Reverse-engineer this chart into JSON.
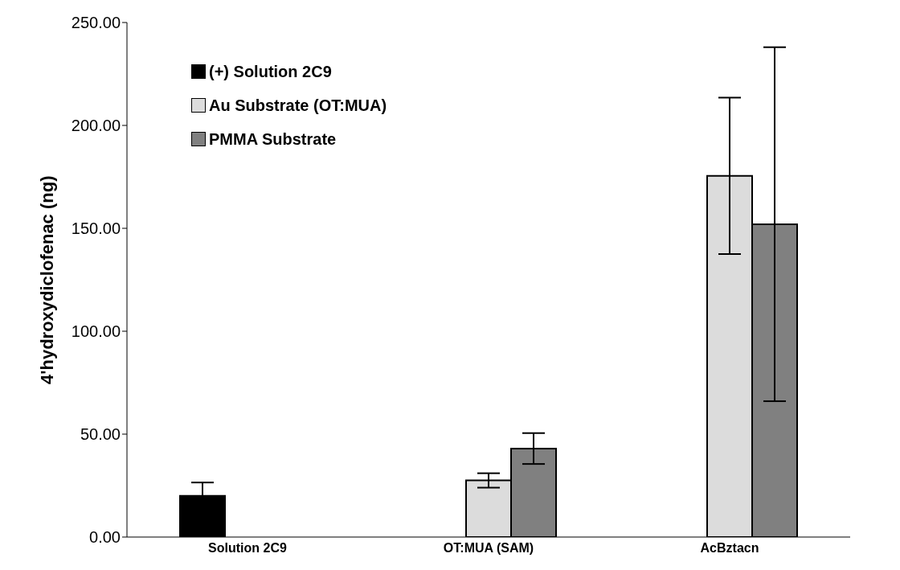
{
  "chart_data": {
    "type": "bar",
    "ylabel": "4'hydroxydiclofenac (ng)",
    "categories": [
      "Solution 2C9",
      "OT:MUA (SAM)",
      "AcBztacn"
    ],
    "series": [
      {
        "name": "(+) Solution 2C9",
        "color": "#000000",
        "values": [
          20,
          null,
          null
        ],
        "errors": [
          6.5,
          null,
          null
        ]
      },
      {
        "name": "Au Substrate (OT:MUA)",
        "color": "#dcdcdc",
        "values": [
          null,
          27.5,
          175.5
        ],
        "errors": [
          null,
          3.5,
          38
        ]
      },
      {
        "name": "PMMA Substrate",
        "color": "#808080",
        "values": [
          null,
          43,
          152
        ],
        "errors": [
          null,
          7.5,
          86
        ]
      }
    ],
    "ylim": [
      0,
      250
    ],
    "yticks": [
      {
        "value": 0,
        "label": "0.00"
      },
      {
        "value": 50,
        "label": "50.00"
      },
      {
        "value": 100,
        "label": "100.00"
      },
      {
        "value": 150,
        "label": "150.00"
      },
      {
        "value": 200,
        "label": "200.00"
      },
      {
        "value": 250,
        "label": "250.00"
      }
    ],
    "legend": "top left",
    "grid": false
  }
}
